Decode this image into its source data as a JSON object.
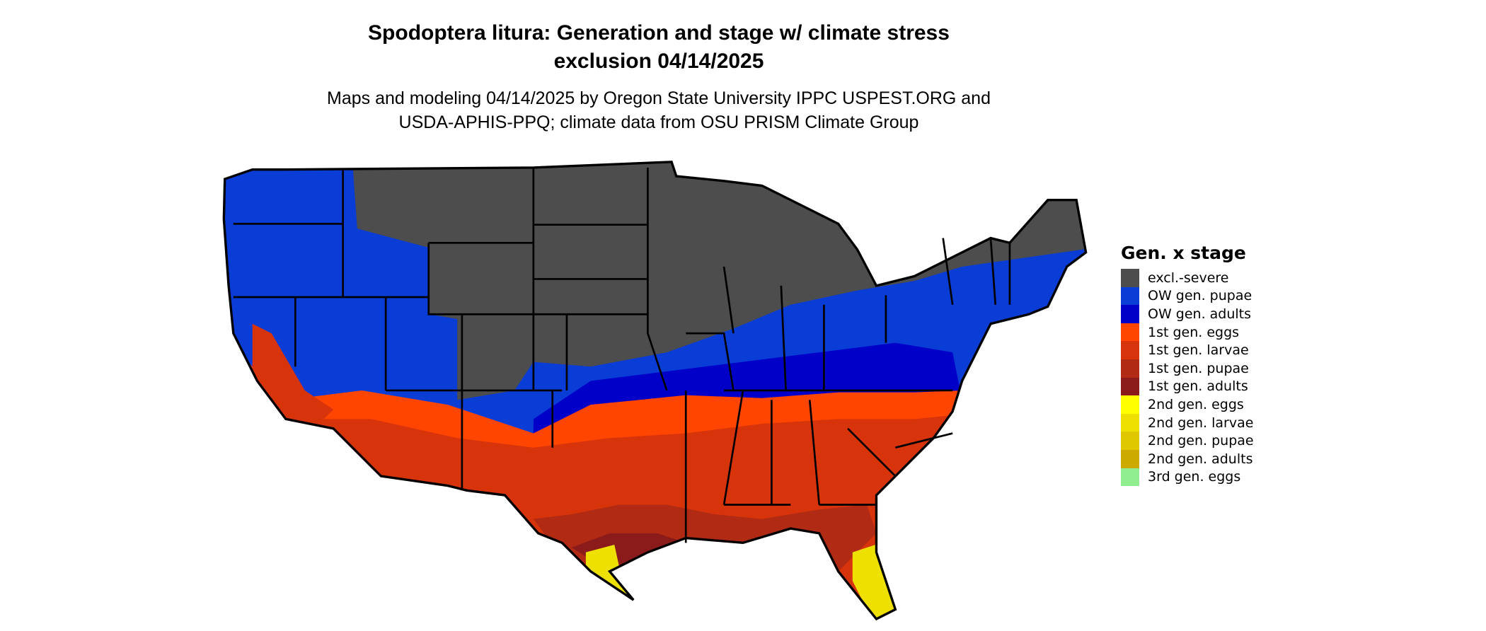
{
  "title": {
    "line1": "Spodoptera litura: Generation and stage w/ climate stress",
    "line2": "exclusion 04/14/2025"
  },
  "subtitle": {
    "line1": "Maps and modeling 04/14/2025 by Oregon State University IPPC USPEST.ORG and",
    "line2": "USDA-APHIS-PPQ; climate data from OSU PRISM Climate Group"
  },
  "legend": {
    "title": "Gen. x stage",
    "items": [
      {
        "label": "excl.-severe",
        "color": "#4d4d4d"
      },
      {
        "label": "OW gen. pupae",
        "color": "#0a3cd6"
      },
      {
        "label": "OW gen. adults",
        "color": "#0000c8"
      },
      {
        "label": "1st gen. eggs",
        "color": "#ff4500"
      },
      {
        "label": "1st gen. larvae",
        "color": "#d8340c"
      },
      {
        "label": "1st gen. pupae",
        "color": "#b02a14"
      },
      {
        "label": "1st gen. adults",
        "color": "#8b1a1a"
      },
      {
        "label": "2nd gen. eggs",
        "color": "#ffff00"
      },
      {
        "label": "2nd gen. larvae",
        "color": "#eee000"
      },
      {
        "label": "2nd gen. pupae",
        "color": "#e0c800"
      },
      {
        "label": "2nd gen. adults",
        "color": "#cdaa00"
      },
      {
        "label": "3rd gen. eggs",
        "color": "#90ee90"
      }
    ]
  }
}
